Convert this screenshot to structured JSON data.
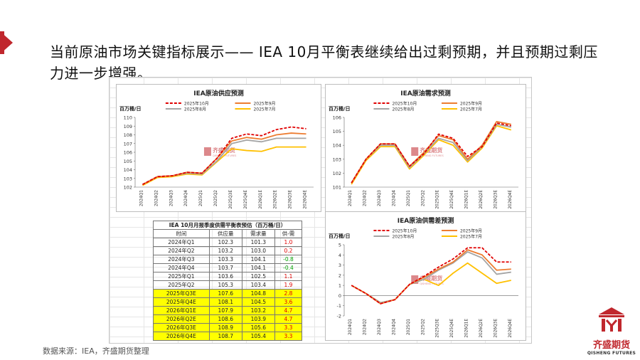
{
  "slide": {
    "title": "当前原油市场关键指标展示—— IEA 10月平衡表继续给出过剩预期，并且预期过剩压力进一步增强。",
    "source": "数据来源：IEA，齐盛期货整理",
    "logo_cn": "齐盛期货",
    "logo_en": "QISHENG FUTURES",
    "watermark_cn": "齐盛期货",
    "watermark_en": "QISHENG FUTURES",
    "accent_color": "#c0272d"
  },
  "chart_data": [
    {
      "type": "line",
      "title": "IEA原油供应预测",
      "ylabel": "百万桶/日",
      "ylim": [
        102,
        110
      ],
      "yticks": [
        102,
        103,
        104,
        105,
        106,
        107,
        108,
        109,
        110
      ],
      "categories": [
        "2024Q1",
        "2024Q2",
        "2024Q3",
        "2024Q4",
        "2025Q1",
        "2025Q2",
        "2025Q3E",
        "2025Q4E",
        "2026Q1E",
        "2026Q2E",
        "2026Q3E",
        "2026Q4E"
      ],
      "series": [
        {
          "name": "2025年10月",
          "color": "#e00000",
          "dash": true,
          "values": [
            102.3,
            103.2,
            103.3,
            103.7,
            103.6,
            105.3,
            107.6,
            108.1,
            107.9,
            108.6,
            108.9,
            108.7
          ]
        },
        {
          "name": "2025年9月",
          "color": "#ed7d31",
          "dash": false,
          "values": [
            102.3,
            103.2,
            103.3,
            103.7,
            103.6,
            105.3,
            107.3,
            107.7,
            107.5,
            108.0,
            108.2,
            108.1
          ]
        },
        {
          "name": "2025年8月",
          "color": "#a5a5a5",
          "dash": false,
          "values": [
            102.3,
            103.2,
            103.3,
            103.6,
            103.5,
            105.0,
            107.0,
            107.4,
            107.2,
            107.6,
            107.6,
            107.6
          ]
        },
        {
          "name": "2025年7月",
          "color": "#ffc000",
          "dash": false,
          "values": [
            102.2,
            103.1,
            103.2,
            103.5,
            103.4,
            104.9,
            106.4,
            106.2,
            106.1,
            106.6,
            106.6,
            106.6
          ]
        }
      ]
    },
    {
      "type": "line",
      "title": "IEA原油需求预测",
      "ylabel": "百万桶/日",
      "ylim": [
        101,
        106
      ],
      "yticks": [
        101,
        102,
        103,
        104,
        105,
        106
      ],
      "categories": [
        "2024Q1",
        "2024Q2",
        "2024Q3",
        "2024Q4",
        "2025Q1",
        "2025Q2",
        "2025Q3E",
        "2025Q4E",
        "2026Q1E",
        "2026Q2E",
        "2026Q3E",
        "2026Q4E"
      ],
      "series": [
        {
          "name": "2025年10月",
          "color": "#e00000",
          "dash": true,
          "values": [
            101.3,
            103.0,
            104.1,
            104.1,
            102.5,
            103.4,
            104.8,
            104.5,
            103.2,
            103.9,
            105.6,
            105.4
          ]
        },
        {
          "name": "2025年9月",
          "color": "#ed7d31",
          "dash": false,
          "values": [
            101.3,
            103.0,
            104.1,
            104.1,
            102.5,
            103.5,
            104.7,
            104.4,
            103.0,
            104.0,
            105.7,
            105.5
          ]
        },
        {
          "name": "2025年8月",
          "color": "#a5a5a5",
          "dash": false,
          "values": [
            101.3,
            103.0,
            104.0,
            104.0,
            102.4,
            103.4,
            104.5,
            104.2,
            102.9,
            103.9,
            105.5,
            105.3
          ]
        },
        {
          "name": "2025年7月",
          "color": "#ffc000",
          "dash": false,
          "values": [
            101.2,
            102.9,
            103.9,
            103.9,
            102.3,
            103.3,
            104.4,
            104.0,
            102.8,
            103.8,
            105.4,
            105.1
          ]
        }
      ]
    },
    {
      "type": "line",
      "title": "IEA原油供需差预测",
      "ylabel": "百万桶/日",
      "ylim": [
        -2,
        5
      ],
      "yticks": [
        -2,
        -1,
        0,
        1,
        2,
        3,
        4,
        5
      ],
      "categories": [
        "2024Q1",
        "2024Q2",
        "2024Q3",
        "2024Q4",
        "2025Q1",
        "2025Q2",
        "2025Q3E",
        "2025Q4E",
        "2026Q1E",
        "2026Q2E",
        "2026Q3E",
        "2026Q4E"
      ],
      "series": [
        {
          "name": "2025年10月",
          "color": "#e00000",
          "dash": true,
          "values": [
            1.0,
            0.2,
            -0.8,
            -0.4,
            1.1,
            1.9,
            2.8,
            3.6,
            4.7,
            4.7,
            3.3,
            3.3
          ]
        },
        {
          "name": "2025年9月",
          "color": "#ed7d31",
          "dash": false,
          "values": [
            1.0,
            0.2,
            -0.8,
            -0.4,
            1.1,
            1.8,
            2.6,
            3.3,
            4.5,
            4.0,
            2.5,
            2.6
          ]
        },
        {
          "name": "2025年8月",
          "color": "#a5a5a5",
          "dash": false,
          "values": [
            1.0,
            0.2,
            -0.7,
            -0.4,
            1.1,
            1.6,
            2.5,
            3.2,
            4.3,
            3.7,
            2.1,
            2.3
          ]
        },
        {
          "name": "2025年7月",
          "color": "#ffc000",
          "dash": false,
          "values": [
            1.0,
            0.2,
            -0.7,
            -0.4,
            1.1,
            1.6,
            1.0,
            2.2,
            3.2,
            2.2,
            1.2,
            1.5
          ]
        }
      ]
    },
    {
      "type": "table",
      "title": "IEA 10月月报季度供需平衡表预估（百万桶/日）",
      "columns": [
        "时间",
        "供应量",
        "需求量",
        "供-需"
      ],
      "rows": [
        {
          "t": "2024年Q1",
          "s": "102.3",
          "d": "101.3",
          "g": "1.0",
          "c": "red",
          "hl": false
        },
        {
          "t": "2024年Q2",
          "s": "103.2",
          "d": "103.0",
          "g": "0.2",
          "c": "red",
          "hl": false
        },
        {
          "t": "2024年Q3",
          "s": "103.3",
          "d": "104.1",
          "g": "-0.8",
          "c": "green",
          "hl": false
        },
        {
          "t": "2024年Q4",
          "s": "103.7",
          "d": "104.1",
          "g": "-0.4",
          "c": "green",
          "hl": false
        },
        {
          "t": "2025年Q1",
          "s": "103.6",
          "d": "102.5",
          "g": "1.1",
          "c": "red",
          "hl": false
        },
        {
          "t": "2025年Q2",
          "s": "105.3",
          "d": "103.4",
          "g": "1.9",
          "c": "red",
          "hl": false
        },
        {
          "t": "2025年Q3E",
          "s": "107.6",
          "d": "104.8",
          "g": "2.8",
          "c": "red",
          "hl": true
        },
        {
          "t": "2025年Q4E",
          "s": "108.1",
          "d": "104.5",
          "g": "3.6",
          "c": "red",
          "hl": true
        },
        {
          "t": "2026年Q1E",
          "s": "107.9",
          "d": "103.2",
          "g": "4.7",
          "c": "red",
          "hl": true
        },
        {
          "t": "2026年Q2E",
          "s": "108.6",
          "d": "103.9",
          "g": "4.7",
          "c": "red",
          "hl": true
        },
        {
          "t": "2026年Q3E",
          "s": "108.9",
          "d": "105.6",
          "g": "3.3",
          "c": "red",
          "hl": true
        },
        {
          "t": "2026年Q4E",
          "s": "108.7",
          "d": "105.4",
          "g": "3.3",
          "c": "red",
          "hl": true
        }
      ]
    }
  ]
}
